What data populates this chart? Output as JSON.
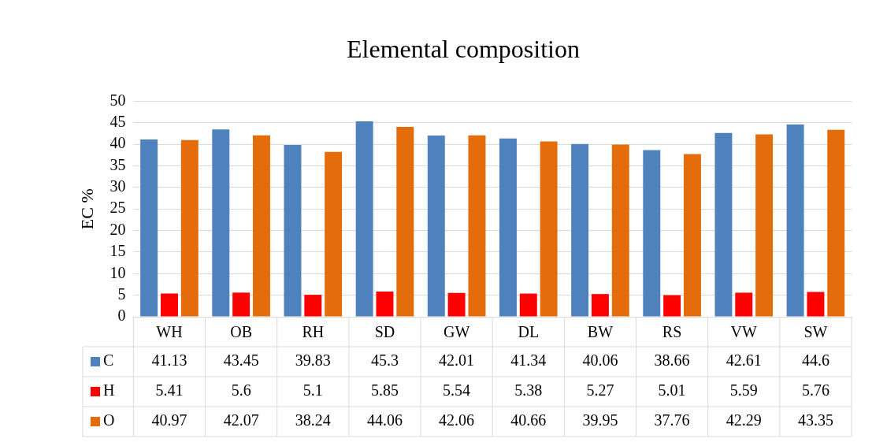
{
  "chart_data": {
    "type": "bar",
    "title": "Elemental composition",
    "ylabel": "EC %",
    "categories": [
      "WH",
      "OB",
      "RH",
      "SD",
      "GW",
      "DL",
      "BW",
      "RS",
      "VW",
      "SW"
    ],
    "series": [
      {
        "name": "C",
        "color": "#4f81bd",
        "values": [
          41.13,
          43.45,
          39.83,
          45.3,
          42.01,
          41.34,
          40.06,
          38.66,
          42.61,
          44.6
        ]
      },
      {
        "name": "H",
        "color": "#ff0000",
        "values": [
          5.41,
          5.6,
          5.1,
          5.85,
          5.54,
          5.38,
          5.27,
          5.01,
          5.59,
          5.76
        ]
      },
      {
        "name": "O",
        "color": "#e46c0a",
        "values": [
          40.97,
          42.07,
          38.24,
          44.06,
          42.06,
          40.66,
          39.95,
          37.76,
          42.29,
          43.35
        ]
      }
    ],
    "ylim": [
      0,
      50
    ],
    "yticks": [
      0,
      5,
      10,
      15,
      20,
      25,
      30,
      35,
      40,
      45,
      50
    ],
    "grid": "y",
    "data_labels": true,
    "legend": "bottom left"
  }
}
